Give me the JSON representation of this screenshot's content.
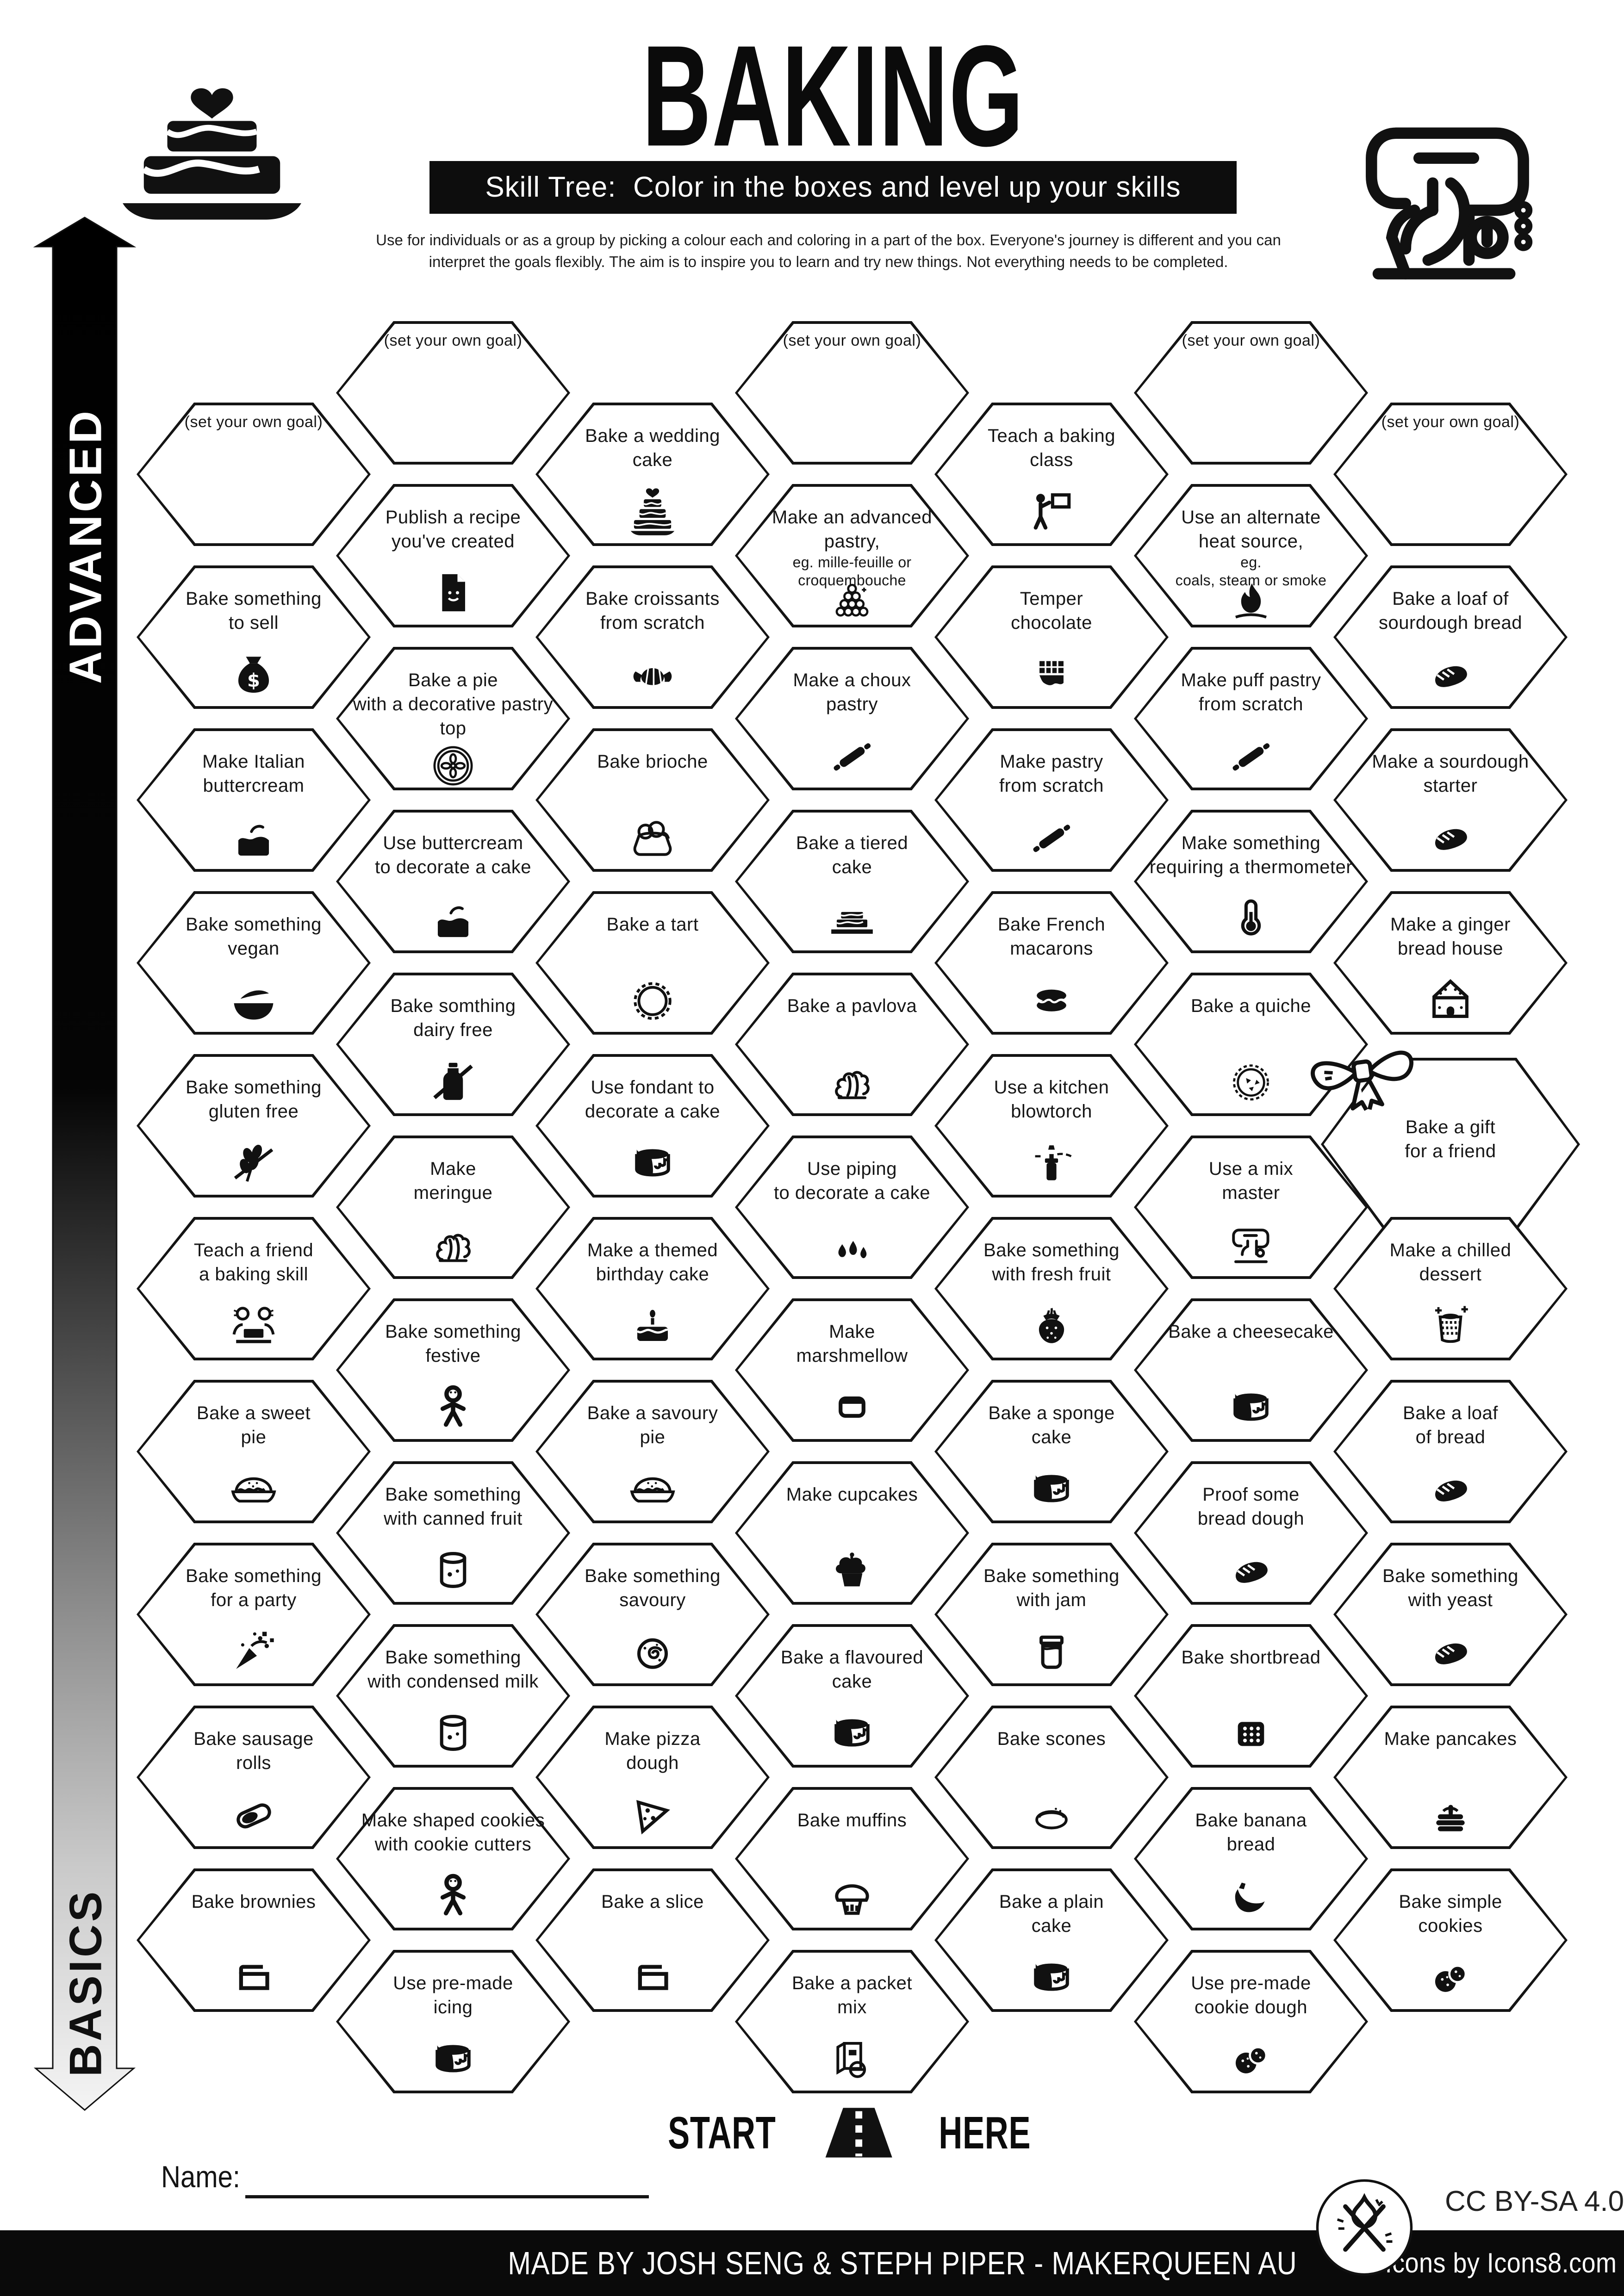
{
  "header": {
    "title": "BAKING",
    "subtitle": "Skill Tree:  Color in the boxes and level up your skills",
    "description": "Use for individuals or as a group by picking a colour each and coloring in a part of the box.  Everyone's journey is different and you can\ninterpret the goals flexibly.  The aim is to inspire you to learn and try new things. Not everything needs to be completed.",
    "left_icon": "wedding-cake-logo-icon",
    "right_icon": "stand-mixer-logo-icon"
  },
  "axis": {
    "advanced": "ADVANCED",
    "basics": "BASICS"
  },
  "start_here": {
    "left": "START",
    "right": "HERE",
    "icon": "road-icon"
  },
  "name_field": {
    "label": "Name:",
    "value": ""
  },
  "footer": {
    "credit": "MADE BY JOSH SENG & STEPH PIPER  -  MAKERQUEEN AU",
    "icons_credit": "Icons by Icons8.com",
    "license": "CC BY-SA 4.0",
    "badge_icon": "maker-tools-icon"
  },
  "colors": {
    "ink": "#111111",
    "paper": "#ffffff",
    "bar": "#0d0d0d"
  },
  "grid": {
    "columns": [
      {
        "cells": [
          {
            "label": "(set your own goal)",
            "goal": true
          },
          {
            "label": "Bake something\nto sell",
            "icon": "money-bag-icon"
          },
          {
            "label": "Make Italian\nbuttercream",
            "icon": "layer-cake-icon"
          },
          {
            "label": "Bake something\nvegan",
            "icon": "vegan-bowl-icon"
          },
          {
            "label": "Bake something\ngluten free",
            "icon": "crossed-wheat-icon"
          },
          {
            "label": "Teach a friend\na baking skill",
            "icon": "two-people-icon"
          },
          {
            "label": "Bake a sweet\npie",
            "icon": "pie-icon"
          },
          {
            "label": "Bake something\nfor a party",
            "icon": "party-popper-icon"
          },
          {
            "label": "Bake sausage\nrolls",
            "icon": "sausage-roll-icon"
          },
          {
            "label": "Bake brownies",
            "icon": "baking-tray-icon"
          }
        ]
      },
      {
        "cells": [
          {
            "label": "(set your own goal)",
            "goal": true
          },
          {
            "label": "Publish a recipe\nyou've created",
            "icon": "recipe-document-icon"
          },
          {
            "label": "Bake a pie\nwith a decorative pastry\ntop",
            "icon": "pie-lattice-icon"
          },
          {
            "label": "Use buttercream\nto decorate a cake",
            "icon": "layer-cake-icon"
          },
          {
            "label": "Bake somthing\ndairy free",
            "icon": "crossed-bottle-icon"
          },
          {
            "label": "Make\nmeringue",
            "icon": "meringue-icon"
          },
          {
            "label": "Bake something\nfestive",
            "icon": "gingerbread-man-icon"
          },
          {
            "label": "Bake something\nwith canned fruit",
            "icon": "canned-food-icon"
          },
          {
            "label": "Bake something\nwith condensed milk",
            "icon": "canned-food-icon"
          },
          {
            "label": "Make shaped cookies\nwith cookie cutters",
            "icon": "gingerbread-man-icon"
          },
          {
            "label": "Use pre-made\nicing",
            "icon": "drip-cake-icon"
          }
        ]
      },
      {
        "cells": [
          {
            "label": "Bake a wedding\ncake",
            "icon": "wedding-cake-icon"
          },
          {
            "label": "Bake croissants\nfrom scratch",
            "icon": "croissant-icon"
          },
          {
            "label": "Bake brioche",
            "icon": "brioche-icon"
          },
          {
            "label": "Bake a tart",
            "icon": "tart-icon"
          },
          {
            "label": "Use fondant to\ndecorate a cake",
            "icon": "drip-cake-icon"
          },
          {
            "label": "Make a themed\nbirthday cake",
            "icon": "birthday-cake-icon"
          },
          {
            "label": "Bake a savoury\npie",
            "icon": "pie-icon"
          },
          {
            "label": "Bake something\nsavoury",
            "icon": "swirl-bun-icon"
          },
          {
            "label": "Make pizza\ndough",
            "icon": "pizza-slice-icon"
          },
          {
            "label": "Bake a slice",
            "icon": "baking-tray-icon"
          }
        ]
      },
      {
        "cells": [
          {
            "label": "(set your own goal)",
            "goal": true
          },
          {
            "label": "Make an advanced\npastry,",
            "sublabel": "eg. mille-feuille or\ncroquembouche",
            "icon": "croquembouche-icon"
          },
          {
            "label": "Make a choux\npastry",
            "icon": "rolling-pin-icon"
          },
          {
            "label": "Bake a tiered\ncake",
            "icon": "tiered-cake-icon"
          },
          {
            "label": "Bake a pavlova",
            "icon": "meringue-icon"
          },
          {
            "label": "Use piping\nto decorate a cake",
            "icon": "piped-cream-icon"
          },
          {
            "label": "Make\nmarshmellow",
            "icon": "marshmallow-icon"
          },
          {
            "label": "Make cupcakes",
            "icon": "cupcake-icon"
          },
          {
            "label": "Bake a flavoured\ncake",
            "icon": "drip-cake-icon"
          },
          {
            "label": "Bake muffins",
            "icon": "muffin-icon"
          },
          {
            "label": "Bake a packet\nmix",
            "icon": "packet-mix-icon"
          }
        ]
      },
      {
        "cells": [
          {
            "label": "Teach a baking\nclass",
            "icon": "teacher-icon"
          },
          {
            "label": "Temper\nchocolate",
            "icon": "chocolate-bar-icon"
          },
          {
            "label": "Make pastry\nfrom scratch",
            "icon": "rolling-pin-icon"
          },
          {
            "label": "Bake French\nmacarons",
            "icon": "macaron-icon"
          },
          {
            "label": "Use a kitchen\nblowtorch",
            "icon": "blowtorch-icon"
          },
          {
            "label": "Bake something\nwith fresh fruit",
            "icon": "fresh-fruit-icon"
          },
          {
            "label": "Bake a sponge\ncake",
            "icon": "drip-cake-icon"
          },
          {
            "label": "Bake something\nwith jam",
            "icon": "jam-jar-icon"
          },
          {
            "label": "Bake scones",
            "icon": "scone-icon"
          },
          {
            "label": "Bake a plain\ncake",
            "icon": "drip-cake-icon"
          }
        ]
      },
      {
        "cells": [
          {
            "label": "(set your own goal)",
            "goal": true
          },
          {
            "label": "Use an alternate\nheat source,",
            "sublabel": "eg.\ncoals, steam or smoke",
            "icon": "flame-icon"
          },
          {
            "label": "Make puff pastry\nfrom scratch",
            "icon": "rolling-pin-icon"
          },
          {
            "label": "Make something\nrequiring a thermometer",
            "icon": "thermometer-icon"
          },
          {
            "label": "Bake a quiche",
            "icon": "quiche-icon"
          },
          {
            "label": "Use a mix\nmaster",
            "icon": "stand-mixer-icon"
          },
          {
            "label": "Bake a cheesecake",
            "icon": "drip-cake-icon"
          },
          {
            "label": "Proof some\nbread dough",
            "icon": "bread-loaf-icon"
          },
          {
            "label": "Bake shortbread",
            "icon": "shortbread-icon"
          },
          {
            "label": "Bake banana\nbread",
            "icon": "banana-icon"
          },
          {
            "label": "Use pre-made\ncookie dough",
            "icon": "cookies-icon"
          }
        ]
      },
      {
        "cells": [
          {
            "label": "(set your own goal)",
            "goal": true
          },
          {
            "label": "Bake a loaf of\nsourdough bread",
            "icon": "bread-loaf-icon"
          },
          {
            "label": "Make a sourdough\nstarter",
            "icon": "bread-loaf-icon"
          },
          {
            "label": "Make a ginger\nbread house",
            "icon": "gingerbread-house-icon"
          },
          {
            "label": "Bake a gift\nfor a friend",
            "bow": true,
            "icon": "gift-bow-icon"
          },
          {
            "label": "Make a chilled\ndessert",
            "icon": "chilled-dessert-icon"
          },
          {
            "label": "Bake a loaf\nof bread",
            "icon": "bread-loaf-icon"
          },
          {
            "label": "Bake something\nwith yeast",
            "icon": "bread-loaf-icon"
          },
          {
            "label": "Make pancakes",
            "icon": "pancakes-icon"
          },
          {
            "label": "Bake simple\ncookies",
            "icon": "cookies-icon"
          }
        ]
      }
    ]
  }
}
